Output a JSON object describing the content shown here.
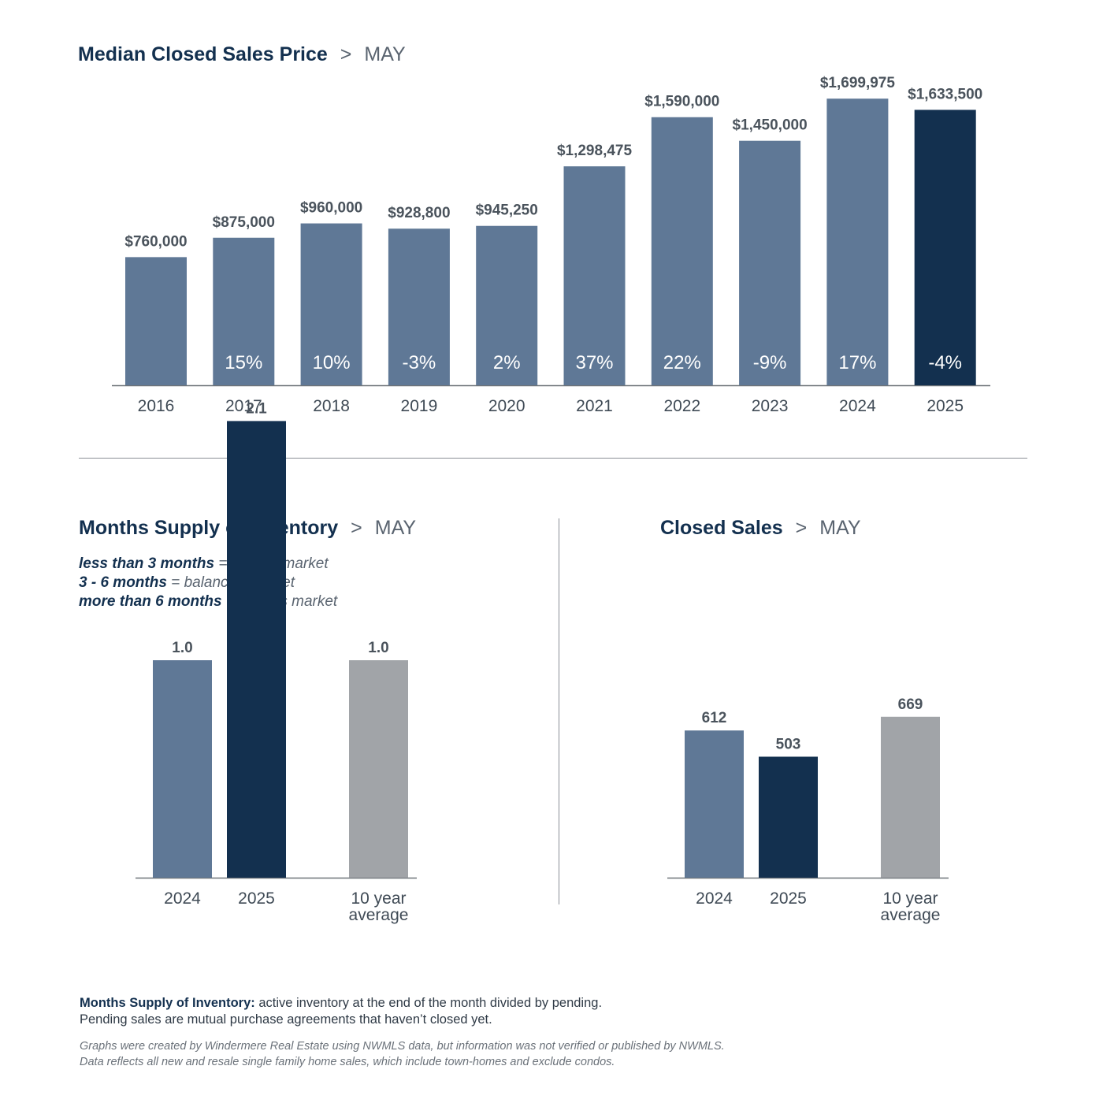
{
  "price_section": {
    "title": "Median Closed Sales Price",
    "separator": ">",
    "month": "MAY"
  },
  "inventory_section": {
    "title": "Months Supply of Inventory",
    "separator": ">",
    "month": "MAY",
    "legend": [
      {
        "range": "less than 3 months",
        "eq": " = ",
        "meaning": "seller’s market"
      },
      {
        "range": "3 - 6 months",
        "eq": " = ",
        "meaning": "balanced market"
      },
      {
        "range": "more than 6 months",
        "eq": " = ",
        "meaning": "buyer’s market"
      }
    ]
  },
  "sales_section": {
    "title": "Closed Sales",
    "separator": ">",
    "month": "MAY"
  },
  "footer": {
    "note_term": "Months Supply of Inventory:",
    "note_text": " active inventory at the end of the month divided by pending.",
    "note_line2": "Pending sales are mutual purchase agreements that haven’t closed yet.",
    "credit_line1": "Graphs were created by Windermere Real Estate using NWMLS data, but information was not verified or published by NWMLS.",
    "credit_line2": "Data reflects all new and resale single family home sales, which include town-homes and exclude condos."
  },
  "colors": {
    "primary": "#5f7896",
    "highlight": "#13304f",
    "average": "#a1a4a8",
    "axis": "#6e7378"
  },
  "chart_data": [
    {
      "id": "price",
      "type": "bar",
      "categories": [
        "2016",
        "2017",
        "2018",
        "2019",
        "2020",
        "2021",
        "2022",
        "2023",
        "2024",
        "2025"
      ],
      "values": [
        760000,
        875000,
        960000,
        928800,
        945250,
        1298475,
        1590000,
        1450000,
        1699975,
        1633500
      ],
      "value_labels": [
        "$760,000",
        "$875,000",
        "$960,000",
        "$928,800",
        "$945,250",
        "$1,298,475",
        "$1,590,000",
        "$1,450,000",
        "$1,699,975",
        "$1,633,500"
      ],
      "change_labels": [
        "",
        "15%",
        "10%",
        "-3%",
        "2%",
        "37%",
        "22%",
        "-9%",
        "17%",
        "-4%"
      ],
      "highlight_index": 9,
      "ylim": [
        0,
        2000000
      ]
    },
    {
      "id": "inventory",
      "type": "bar",
      "categories": [
        "2024",
        "2025",
        "10 year average"
      ],
      "category_lines": [
        [
          "2024"
        ],
        [
          "2025"
        ],
        [
          "10 year",
          "average"
        ]
      ],
      "values": [
        1.0,
        2.1,
        1.0
      ],
      "value_labels": [
        "1.0",
        "2.1",
        "1.0"
      ],
      "ylim": [
        0,
        2.5
      ]
    },
    {
      "id": "sales",
      "type": "bar",
      "categories": [
        "2024",
        "2025",
        "10 year average"
      ],
      "category_lines": [
        [
          "2024"
        ],
        [
          "2025"
        ],
        [
          "10 year",
          "average"
        ]
      ],
      "values": [
        612,
        503,
        669
      ],
      "value_labels": [
        "612",
        "503",
        "669"
      ],
      "ylim": [
        0,
        1140
      ]
    }
  ]
}
